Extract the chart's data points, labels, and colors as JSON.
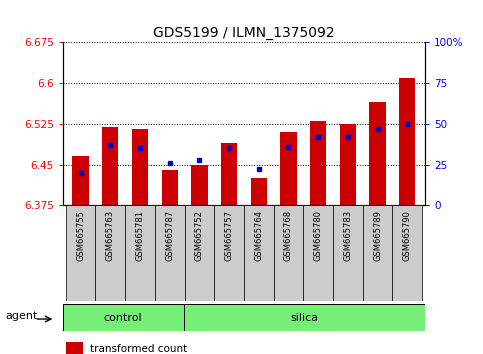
{
  "title": "GDS5199 / ILMN_1375092",
  "samples": [
    "GSM665755",
    "GSM665763",
    "GSM665781",
    "GSM665787",
    "GSM665752",
    "GSM665757",
    "GSM665764",
    "GSM665768",
    "GSM665780",
    "GSM665783",
    "GSM665789",
    "GSM665790"
  ],
  "n_control": 4,
  "n_silica": 8,
  "transformed_count": [
    6.465,
    6.52,
    6.515,
    6.44,
    6.45,
    6.49,
    6.425,
    6.51,
    6.53,
    6.525,
    6.565,
    6.61
  ],
  "percentile_rank": [
    20,
    37,
    35,
    26,
    28,
    35,
    22,
    36,
    42,
    42,
    47,
    50
  ],
  "ylim_left": [
    6.375,
    6.675
  ],
  "ylim_right": [
    0,
    100
  ],
  "yticks_left": [
    6.375,
    6.45,
    6.525,
    6.6,
    6.675
  ],
  "yticks_right": [
    0,
    25,
    50,
    75,
    100
  ],
  "bar_color": "#cc0000",
  "dot_color": "#0000cc",
  "ybase": 6.375,
  "group_color": "#77ee77",
  "group_edge_color": "#000000",
  "tick_bg_color": "#cccccc",
  "title_fontsize": 10,
  "axis_fontsize": 7.5,
  "sample_fontsize": 6,
  "group_fontsize": 8,
  "legend_fontsize": 7.5,
  "bar_width": 0.55
}
